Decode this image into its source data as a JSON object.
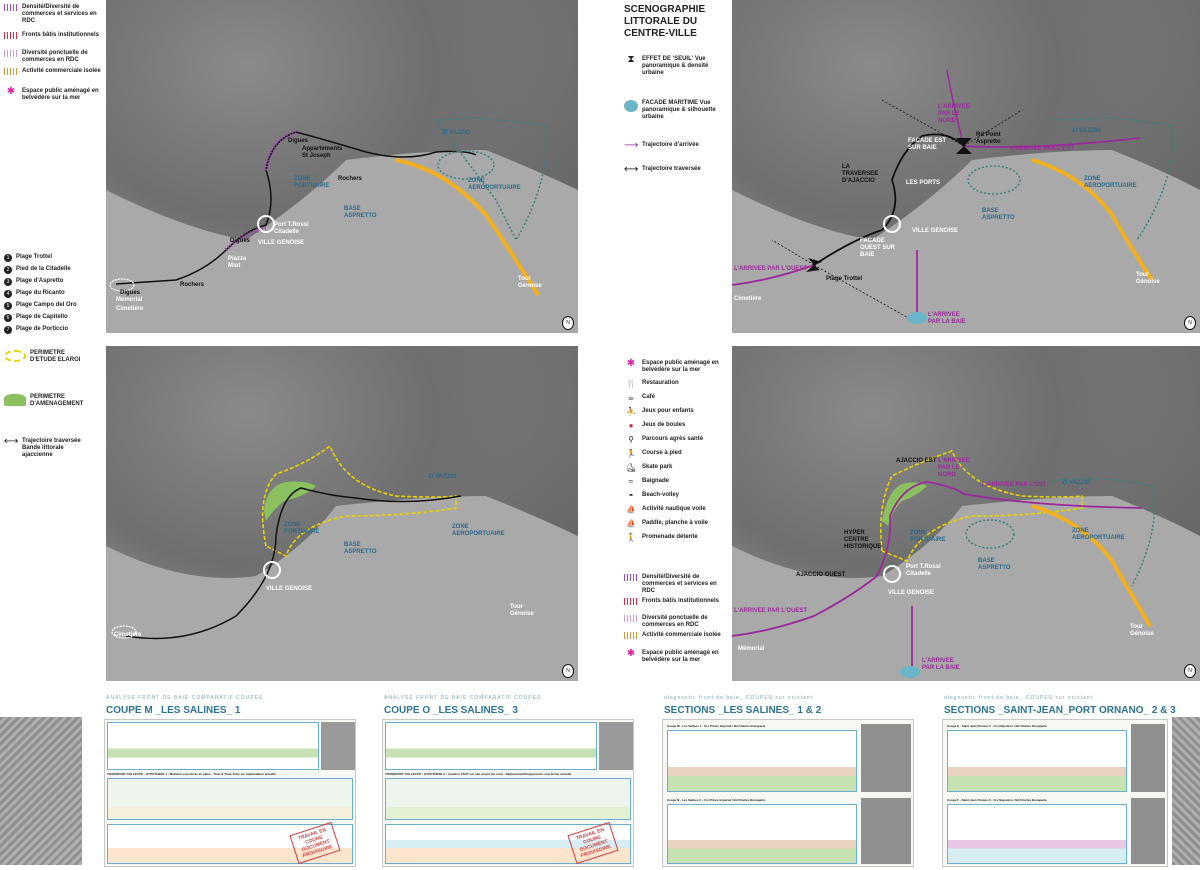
{
  "map1": {
    "legend": [
      {
        "label": "Densité/Diversité de commerces et services en RDC",
        "color": "#a04cb0"
      },
      {
        "label": "Fronts bâtis institutionnels",
        "color": "#d0304a"
      },
      {
        "label": "Diversité ponctuelle de commerces en RDC",
        "color": "#c7a0d4"
      },
      {
        "label": "Activité commerciale isolée",
        "color": "#d49a3a"
      },
      {
        "label": "Espace public aménagé en belvédère sur la mer",
        "color": "#e020a0"
      }
    ],
    "beaches": [
      {
        "n": "1",
        "label": "Plage Trottel"
      },
      {
        "n": "2",
        "label": "Pied de la Citadelle"
      },
      {
        "n": "3",
        "label": "Plage d'Aspretto"
      },
      {
        "n": "4",
        "label": "Plage du Ricanto"
      },
      {
        "n": "5",
        "label": "Plage Campo del Oro"
      },
      {
        "n": "6",
        "label": "Plage de Capitello"
      },
      {
        "n": "7",
        "label": "Plage de Porticcio"
      }
    ],
    "labels": {
      "digues_top": "Digues",
      "apartments": "Appartements St Joseph",
      "rochers_mid": "Rochers",
      "zone_portuaire": "ZONE PORTUAIRE",
      "base_aspretto": "BASE ASPRETTO",
      "zone_aero": "ZONE AEROPORTUAIRE",
      "zi_vazzio": "ZI VAZZIO",
      "port_rossi": "Port T.Rossi Citadelle",
      "ville_genoise": "VILLE GENOISE",
      "digues_mid": "Digues",
      "piazza": "Piazza Miot",
      "rochers_low": "Rochers",
      "digues_low": "Digues",
      "memorial": "Mémorial",
      "cimetiere": "Cimetière",
      "tour": "Tour Génoise"
    }
  },
  "map2": {
    "title": "SCENOGRAPHIE LITTORALE DU CENTRE-VILLE",
    "legend": [
      {
        "label": "EFFET DE 'SEUIL' Vue panoramique & densité urbaine"
      },
      {
        "label": "FACADE MARITIME Vue panoramique & silhouette urbaine"
      },
      {
        "label": "Trajectoire d'arrivée",
        "color": "#9a2a9a"
      },
      {
        "label": "Trajectoire traversée",
        "color": "#111111"
      }
    ],
    "labels": {
      "arrivee_nord": "L'ARRIVEE PAR LE NORD",
      "rd_point": "Rd Point Aspretto",
      "facade_est": "FACADE EST SUR BAIE",
      "arrivee_est": "L'ARRIVEE PAR L'EST",
      "zi_vazzio": "ZI VAZZIO",
      "traversee": "LA TRAVERSEE D'AJACCIO",
      "les_ports": "LES PORTS",
      "zone_aero": "ZONE AEROPORTUAIRE",
      "base_aspretto": "BASE ASPRETTO",
      "ville_genoise": "VILLE GENOISE",
      "facade_ouest": "FACADE OUEST SUR BAIE",
      "arrivee_ouest": "L'ARRIVEE PAR L'OUEST",
      "plage_trottel": "Plage Trottel",
      "cimetiere": "Cimetière",
      "arrivee_baie": "L'ARRIVEE PAR LA BAIE",
      "tour": "Tour Génoise"
    }
  },
  "map3": {
    "legend": [
      {
        "label": "PERIMETRE D'ETUDE ELARGI",
        "color": "#e8d400"
      },
      {
        "label": "PERIMETRE D'AMENAGEMENT",
        "color": "#8ac060"
      },
      {
        "label": "Trajectoire traversée Bande littorale ajaccienne",
        "color": "#111111"
      }
    ],
    "labels": {
      "zi_vazzio": "ZI VAZZIO",
      "zone_portuaire": "ZONE PORTUAIRE",
      "base_aspretto": "BASE ASPRETTO",
      "zone_aero": "ZONE AEROPORTUAIRE",
      "ville_genoise": "VILLE GENOISE",
      "cimetiere": "Cimetière",
      "tour": "Tour Génoise"
    }
  },
  "map4": {
    "legend_top": [
      "Espace public aménagé en belvédère sur la mer",
      "Restauration",
      "Café",
      "Jeux pour enfants",
      "Jeux de boules",
      "Parcours agrès santé",
      "Course à pied",
      "Skate park",
      "Baignade",
      "Beach-volley",
      "Activité nautique voile",
      "Paddle, planche à voile",
      "Promenade détente"
    ],
    "legend_bottom": [
      {
        "label": "Densité/Diversité de commerces et services en RDC",
        "color": "#a04cb0"
      },
      {
        "label": "Fronts bâtis institutionnels",
        "color": "#d0304a"
      },
      {
        "label": "Diversité ponctuelle de commerces en RDC",
        "color": "#c7a0d4"
      },
      {
        "label": "Activité commerciale isolée",
        "color": "#d49a3a"
      },
      {
        "label": "Espace public aménagé en belvédère sur la mer",
        "color": "#e020a0"
      }
    ],
    "labels": {
      "ajaccio_est": "AJACCIO EST",
      "arrivee_nord": "L'ARRIVEE PAR LE NORD",
      "arrivee_est": "L'ARRIVEE PAR L'EST",
      "zi_vazzio": "ZI VAZZIO",
      "hyper": "HYPER CENTRE HISTORIQUE",
      "zone_portuaire": "ZONE PORTUAIRE",
      "zone_aero": "ZONE AEROPORTUAIRE",
      "ajaccio_ouest": "AJACCIO OUEST",
      "port_rossi": "Port T.Rossi Citadelle",
      "base_aspretto": "BASE ASPRETTO",
      "ville_genoise": "VILLE GENOISE",
      "arrivee_ouest": "L'ARRIVEE PAR L'OUEST",
      "memorial": "Mémorial",
      "tour": "Tour Génoise",
      "arrivee_baie": "L'ARRIVEE PAR LA BAIE"
    }
  },
  "sections": [
    {
      "sub": "ANALYSE FRONT DE BAIE COMPARATIF COUPES",
      "title": "COUPE M _LES SALINES_ 1",
      "row1": "TRANSPORT COLLECTIF : HYPOTHESE 1 : Maintien voie ferrée en place - Train & Tram-Train sur implantation actuelle",
      "stamp": "TRAVAIL EN COURS DOCUMENT PROVISOIRE"
    },
    {
      "sub": "ANALYSE FRONT DE BAIE COMPARATIF COUPES",
      "title": "COUPE O _LES SALINES_ 3",
      "row1": "TRANSPORT COLLECTIF : HYPOTHESE 2 : Création TSCP sur site propre (bi-voie) - Déplacement/Suppression voie ferrée actuelle",
      "stamp": "TRAVAIL EN COURS DOCUMENT PROVISOIRE"
    },
    {
      "sub": "diagnostic front de baie_ COUPES sur existant",
      "title": "SECTIONS _LES SALINES_ 1 & 2",
      "row1": "Coupe M - Les Salines 1 - Crs Prince Impérial / Bd Charles Bonaparte",
      "row2": "Coupe N - Les Salines 2 - Crs Prince Impérial / Bd Charles Bonaparte"
    },
    {
      "sub": "diagnostic front de baie_ COUPES sur existant",
      "title": "SECTIONS _SAINT-JEAN_PORT ORNANO_ 2 & 3",
      "row1": "Coupe E - Saint Jean Ornano 2 - Crs Napoléon / Bd Charles Bonaparte",
      "row2": "Coupe F - Saint Jean Ornano 3 - Crs Napoléon / Bd Charles Bonaparte"
    }
  ]
}
